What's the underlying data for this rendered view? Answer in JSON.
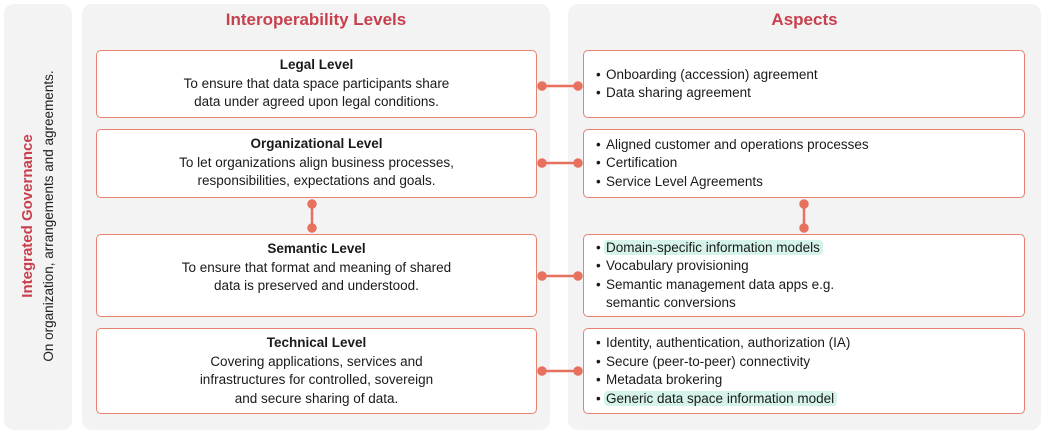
{
  "side": {
    "title": "Integrated Governance",
    "subtitle": "On organization, arrangements and agreements."
  },
  "headers": {
    "levels": "Interoperability Levels",
    "aspects": "Aspects"
  },
  "levels": [
    {
      "title": "Legal Level",
      "lines": [
        "To ensure that data space participants share",
        "data under agreed upon legal conditions."
      ]
    },
    {
      "title": "Organizational Level",
      "lines": [
        "To let organizations align business processes,",
        "responsibilities, expectations and goals."
      ]
    },
    {
      "title": "Semantic Level",
      "lines": [
        "To ensure that format and meaning of shared",
        "data is preserved and understood."
      ]
    },
    {
      "title": "Technical Level",
      "lines": [
        "Covering applications, services and",
        "infrastructures for controlled, sovereign",
        "and secure sharing of data."
      ]
    }
  ],
  "aspects": [
    {
      "items": [
        "Onboarding (accession) agreement",
        "Data sharing agreement"
      ]
    },
    {
      "items": [
        "Aligned customer and operations processes",
        "Certification",
        "Service Level Agreements"
      ]
    },
    {
      "items": [
        "Domain-specific information models",
        "Vocabulary provisioning",
        "Semantic management data apps e.g."
      ],
      "continuation": "semantic conversions",
      "highlighted_item": "Domain-specific information models"
    },
    {
      "items": [
        "Identity, authentication, authorization (IA)",
        "Secure (peer-to-peer) connectivity",
        "Metadata brokering",
        "Generic data space information model"
      ],
      "highlighted_item": "Generic data space information model"
    }
  ],
  "colors": {
    "accent_red": "#c8404e",
    "box_border": "#e8826f",
    "connector": "#e8705e",
    "highlight": "#d5f3ea",
    "panel_bg": "#f3f3f3"
  }
}
